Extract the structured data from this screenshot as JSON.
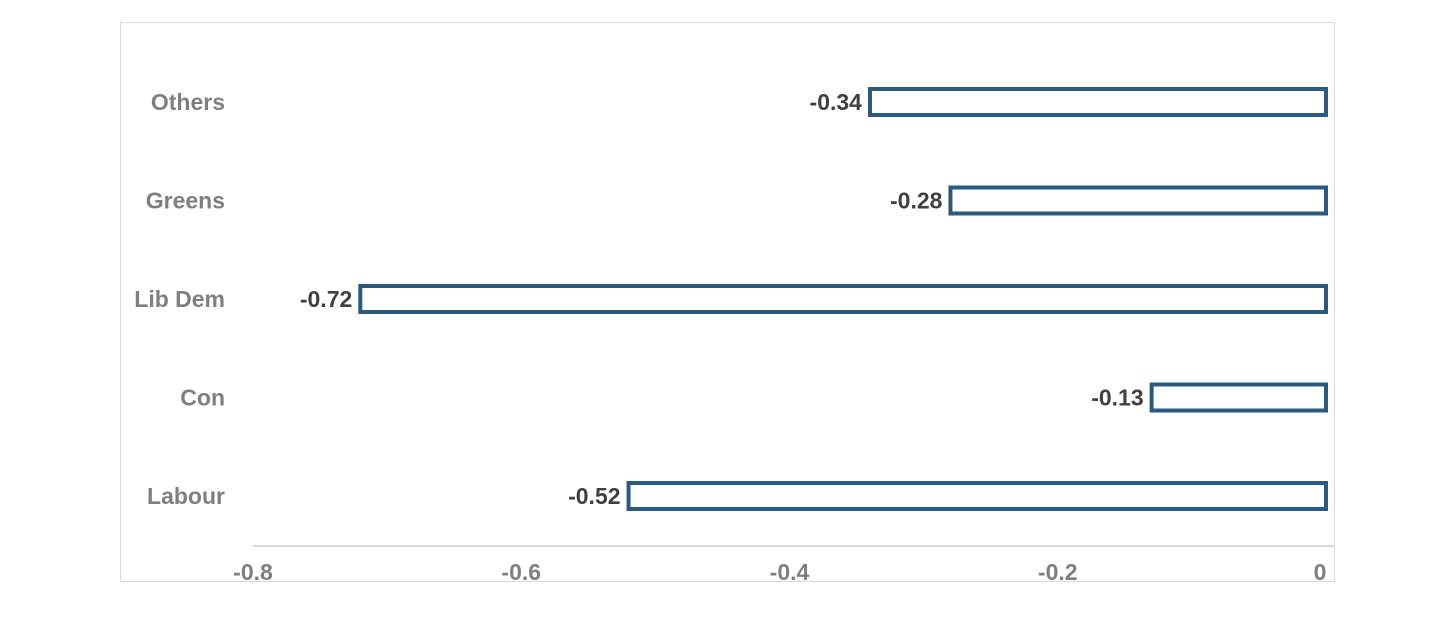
{
  "chart_data": {
    "type": "bar",
    "orientation": "horizontal",
    "categories": [
      "Others",
      "Greens",
      "Lib Dem",
      "Con",
      "Labour"
    ],
    "values": [
      -0.34,
      -0.28,
      -0.72,
      -0.13,
      -0.52
    ],
    "data_labels": [
      "-0.34",
      "-0.28",
      "-0.72",
      "-0.13",
      "-0.52"
    ],
    "x_ticks": [
      -0.8,
      -0.6,
      -0.4,
      -0.2,
      0
    ],
    "x_tick_labels": [
      "-0.8",
      "-0.6",
      "-0.4",
      "-0.2",
      "0"
    ],
    "xlim": [
      -0.8,
      0
    ],
    "title": "",
    "xlabel": "",
    "ylabel": "",
    "grid": false,
    "legend": "none",
    "colors": {
      "bar_outline": "#2a5a80",
      "bar_fill": "#ffffff",
      "axis": "#d9d9d9",
      "label_text": "#7f7f7f",
      "value_text": "#404040"
    }
  }
}
